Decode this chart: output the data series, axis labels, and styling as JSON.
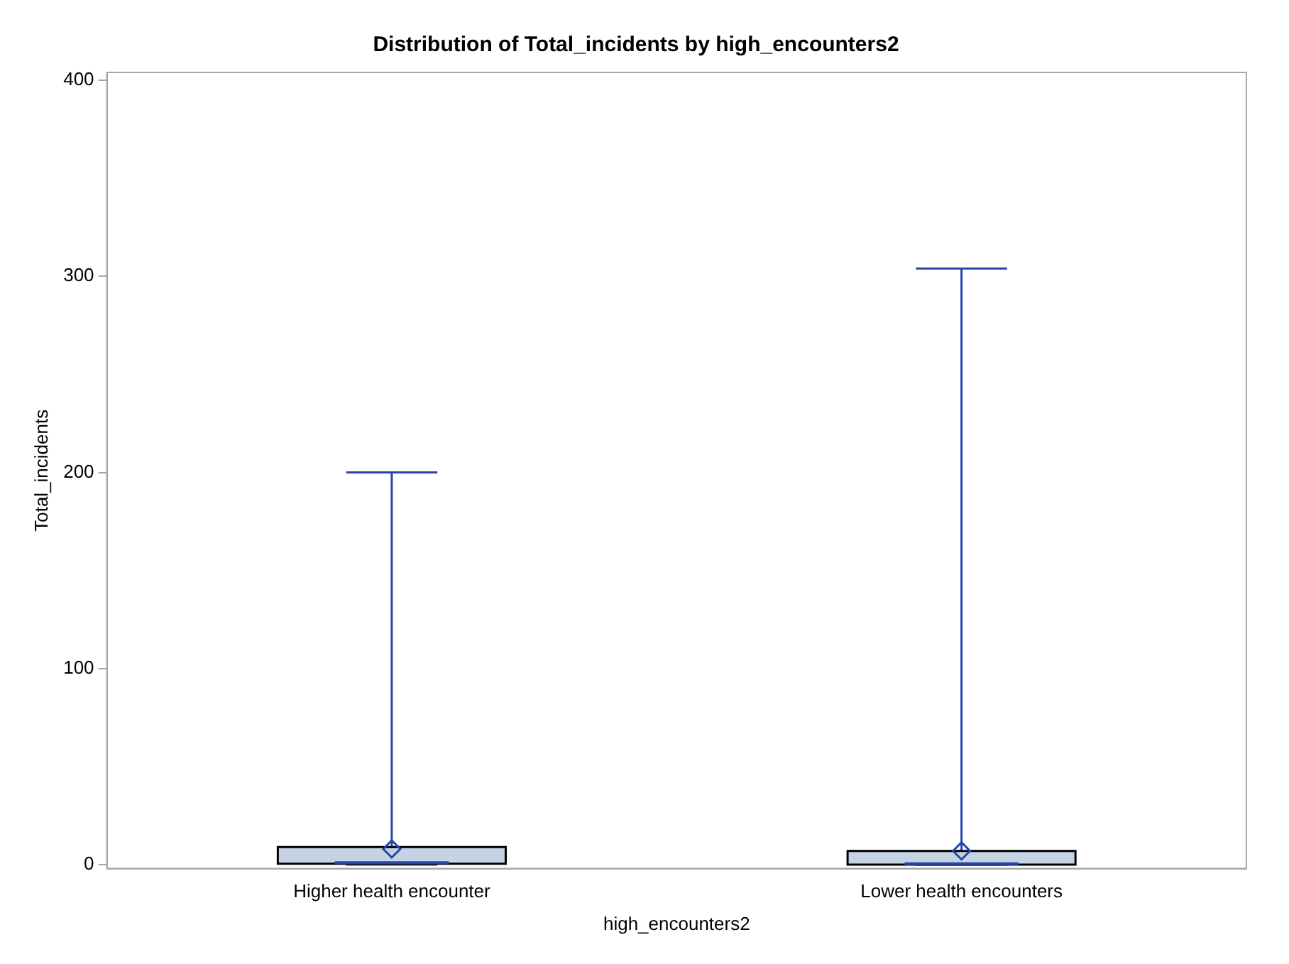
{
  "chart_data": {
    "type": "box",
    "title": "Distribution of Total_incidents by high_encounters2",
    "xlabel": "high_encounters2",
    "ylabel": "Total_incidents",
    "categories": [
      "Higher health encounter",
      "Lower health encounters"
    ],
    "boxes": [
      {
        "low": 0,
        "q1": 0.5,
        "median": 1,
        "q3": 9,
        "high": 200,
        "mean": 8
      },
      {
        "low": 0,
        "q1": 0,
        "median": 0.5,
        "q3": 7,
        "high": 304,
        "mean": 7
      }
    ],
    "color": "#c5d3e5",
    "ylim": [
      -2,
      404
    ],
    "yticks": [
      0,
      100,
      200,
      300,
      400
    ],
    "grid": false,
    "legend": false,
    "marker": "diamond"
  }
}
